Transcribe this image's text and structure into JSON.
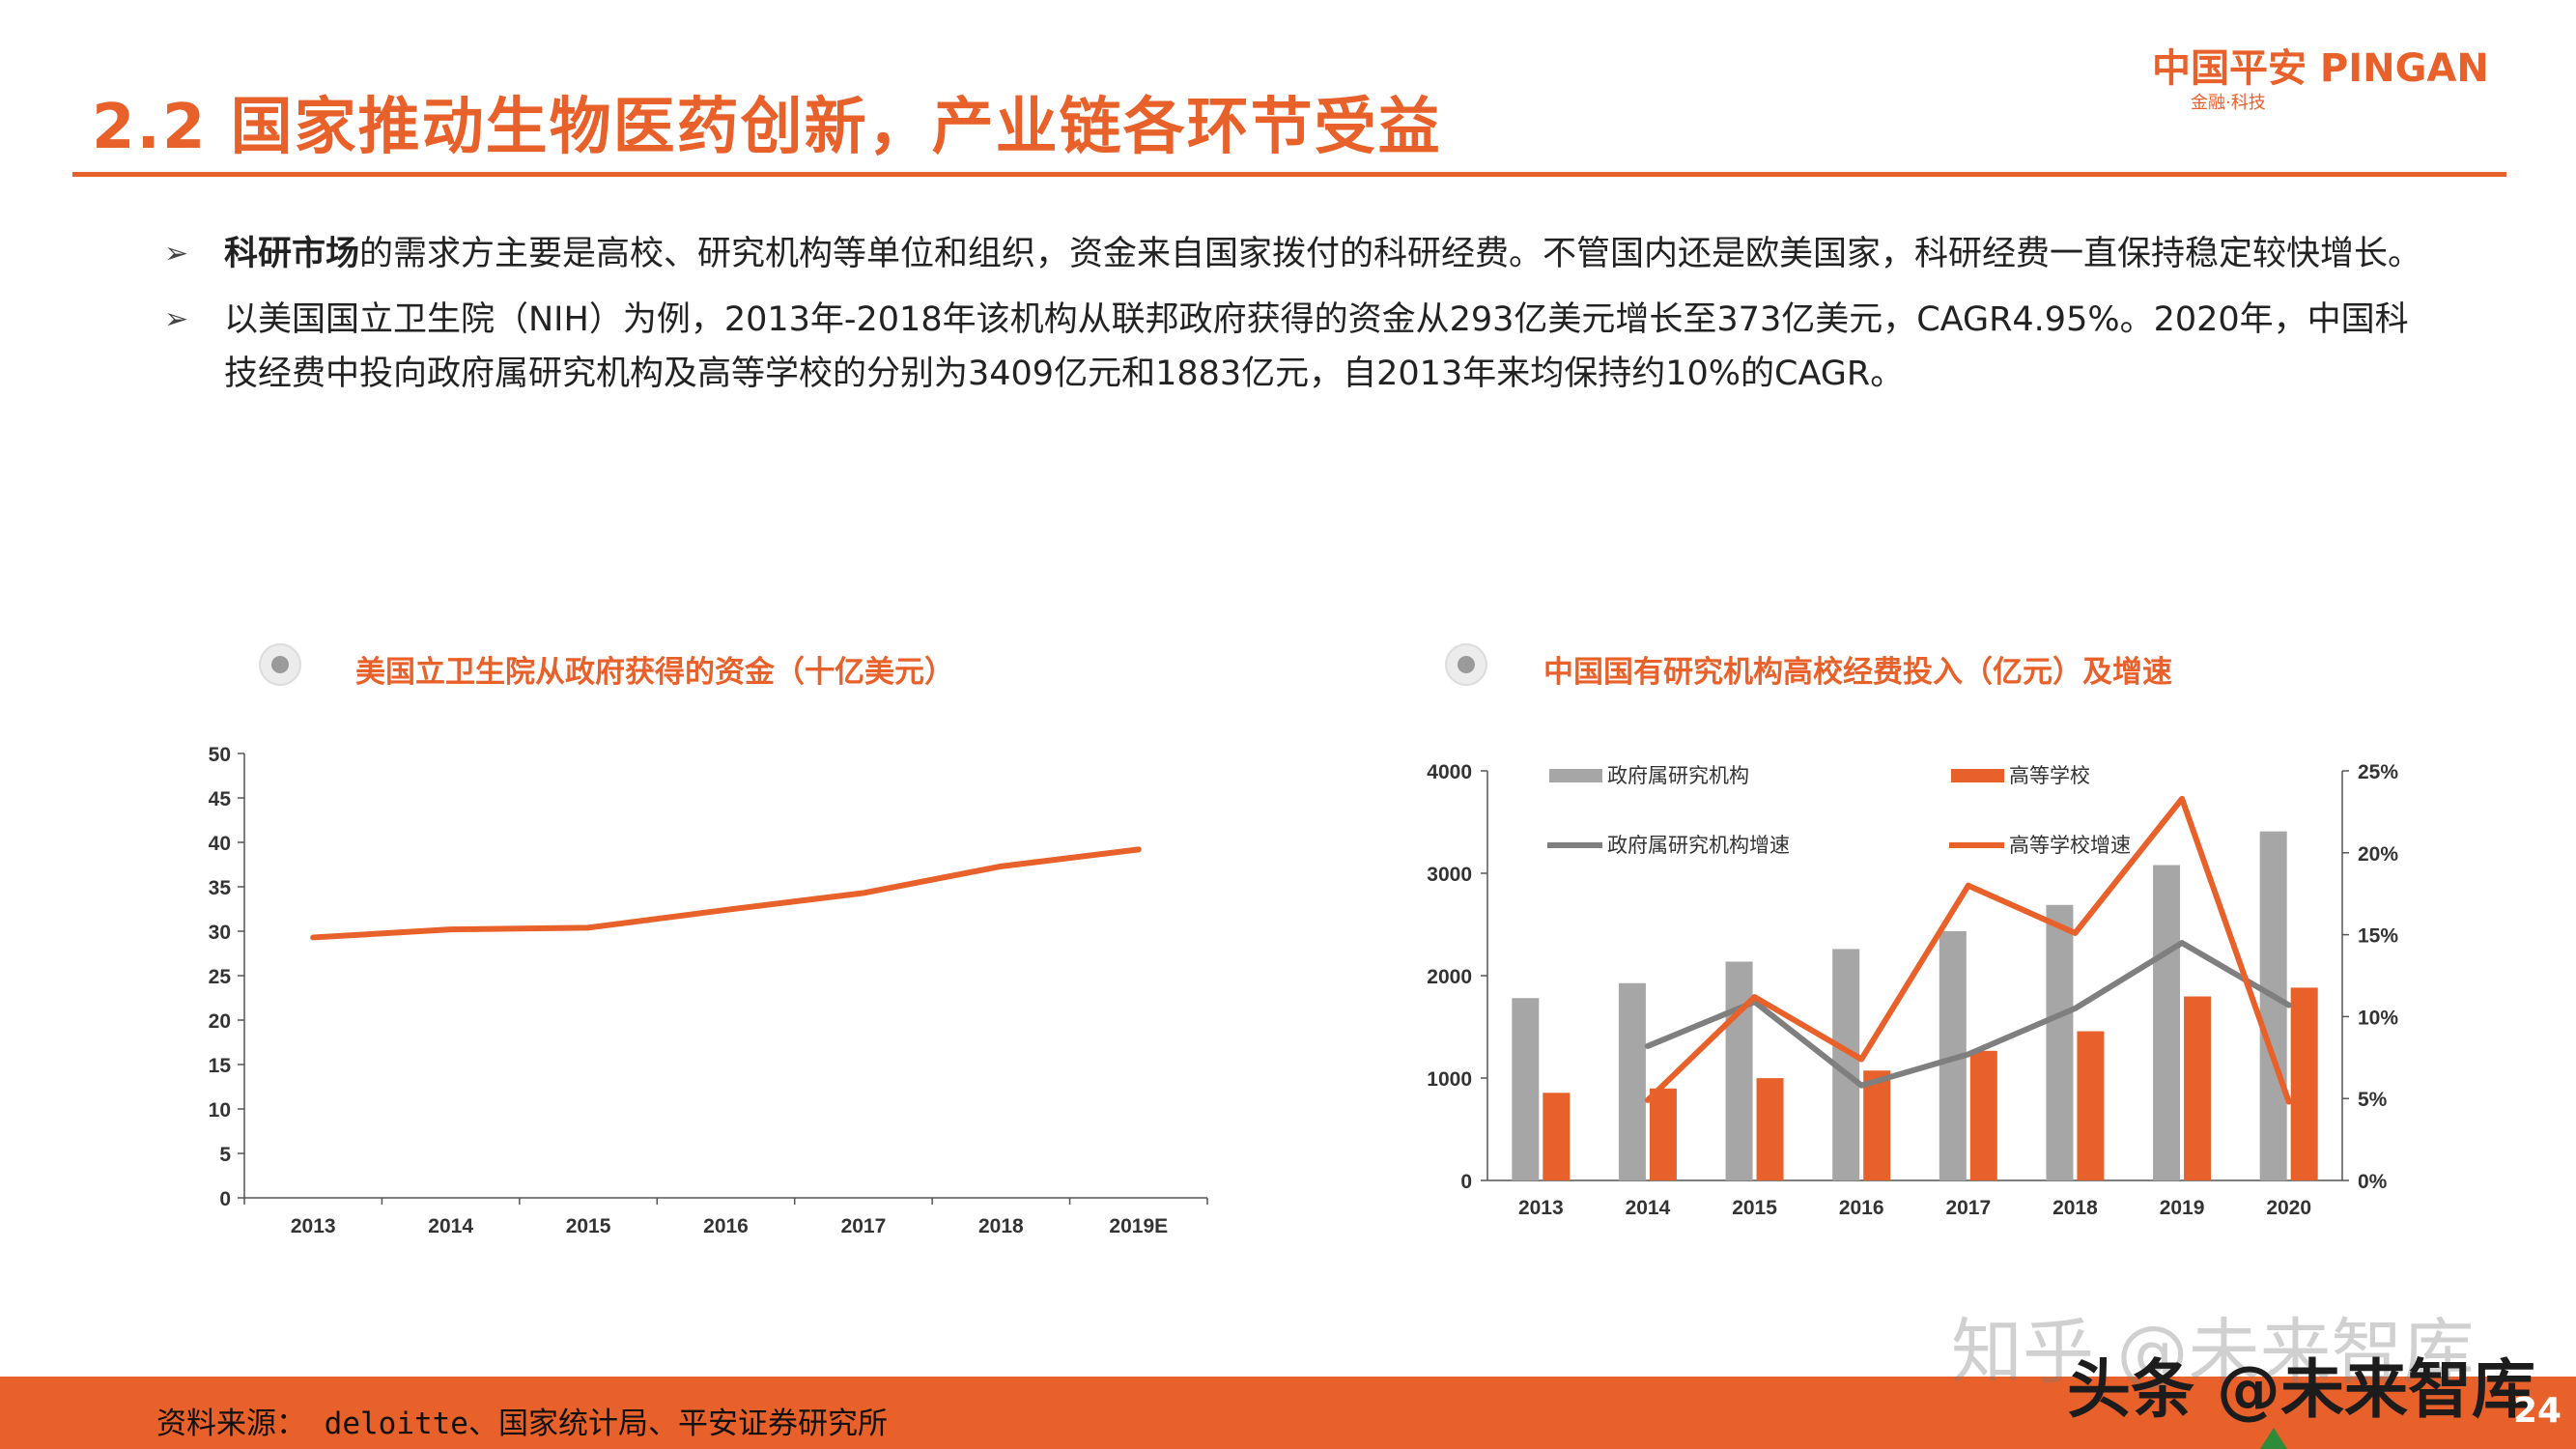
{
  "header": {
    "title": "2.2 国家推动生物医药创新，产业链各环节受益",
    "logo_main": "中国平安 PINGAN",
    "logo_sub": "金融·科技"
  },
  "bullets": [
    {
      "bold": "科研市场",
      "text": "的需求方主要是高校、研究机构等单位和组织，资金来自国家拨付的科研经费。不管国内还是欧美国家，科研经费一直保持稳定较快增长。"
    },
    {
      "bold": "",
      "text": "以美国国立卫生院（NIH）为例，2013年-2018年该机构从联邦政府获得的资金从293亿美元增长至373亿美元，CAGR4.95%。2020年，中国科技经费中投向政府属研究机构及高等学校的分别为3409亿元和1883亿元，自2013年来均保持约10%的CAGR。"
    }
  ],
  "bullet_glyph": "➢",
  "chart_titles": {
    "left": "美国立卫生院从政府获得的资金（十亿美元）",
    "right": "中国国有研究机构高校经费投入（亿元）及增速"
  },
  "chart_data": [
    {
      "type": "line",
      "title": "美国立卫生院从政府获得的资金（十亿美元）",
      "categories": [
        "2013",
        "2014",
        "2015",
        "2016",
        "2017",
        "2018",
        "2019E"
      ],
      "series": [
        {
          "values": [
            29.3,
            30.2,
            30.4,
            32.4,
            34.3,
            37.3,
            39.2
          ],
          "color": "#e8602a"
        }
      ],
      "ylim": [
        0,
        50
      ],
      "yticks": [
        "0",
        "5",
        "10",
        "15",
        "20",
        "25",
        "30",
        "35",
        "40",
        "45",
        "50"
      ],
      "grid": false
    },
    {
      "type": "bar",
      "title": "中国国有研究机构高校经费投入（亿元）及增速",
      "categories": [
        "2013",
        "2014",
        "2015",
        "2016",
        "2017",
        "2018",
        "2019",
        "2020"
      ],
      "series": [
        {
          "name": "政府属研究机构",
          "type": "bar",
          "axis": "left",
          "color": "#a6a6a6",
          "values": [
            1781,
            1927,
            2137,
            2260,
            2435,
            2691,
            3080,
            3409
          ]
        },
        {
          "name": "高等学校",
          "type": "bar",
          "axis": "left",
          "color": "#e8602a",
          "values": [
            856,
            898,
            999,
            1073,
            1266,
            1457,
            1797,
            1883
          ]
        },
        {
          "name": "政府属研究机构增速",
          "type": "line",
          "axis": "right",
          "color": "#7f7f7f",
          "values": [
            null,
            8.2,
            10.9,
            5.8,
            7.7,
            10.5,
            14.5,
            10.7
          ]
        },
        {
          "name": "高等学校增速",
          "type": "line",
          "axis": "right",
          "color": "#e8602a",
          "values": [
            null,
            4.9,
            11.2,
            7.4,
            18.0,
            15.1,
            23.3,
            4.8
          ]
        }
      ],
      "ylim_left": [
        0,
        4000
      ],
      "yticks_left": [
        "0",
        "1000",
        "2000",
        "3000",
        "4000"
      ],
      "ylim_right": [
        0,
        25
      ],
      "yticks_right": [
        "0%",
        "5%",
        "10%",
        "15%",
        "20%",
        "25%"
      ],
      "legend_position": "top",
      "grid": false
    }
  ],
  "footer": {
    "source": "资料来源： deloitte、国家统计局、平安证券研究所",
    "page": "24"
  },
  "watermark": {
    "line1": "知乎 @未来智库",
    "line2": "头条 @未来智库"
  },
  "colors": {
    "accent": "#e8602a",
    "gray_bar": "#a6a6a6",
    "gray_line": "#7f7f7f"
  }
}
